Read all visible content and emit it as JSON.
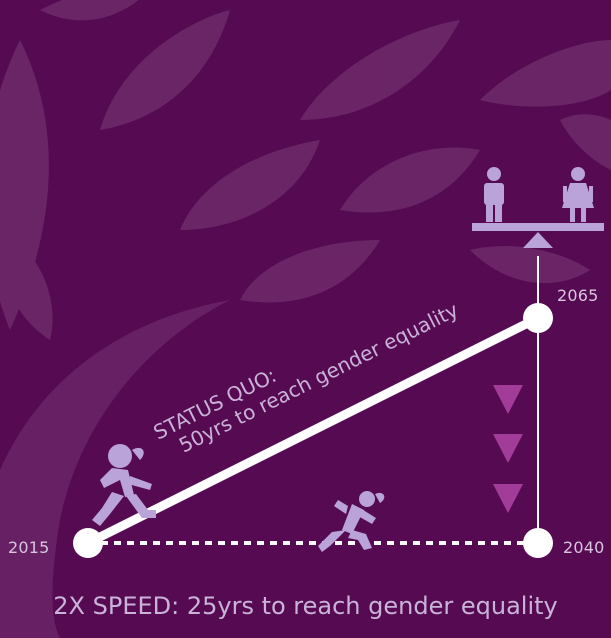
{
  "labels": {
    "year_start": "2015",
    "year_end_fast": "2040",
    "year_end_status_quo": "2065",
    "status_quo_title": "STATUS QUO:",
    "status_quo_subtitle": "50yrs to reach gender equality",
    "double_speed": "2X SPEED: 25yrs to reach gender equality"
  },
  "icons": {
    "walker": "walking-girl-icon",
    "runner": "running-woman-icon",
    "balance": "balance-scale-icon",
    "male": "male-figure-icon",
    "female": "female-figure-icon",
    "arrows": "down-arrow-icon"
  },
  "colors": {
    "background": "#560a52",
    "leaf": "#6e2a6b",
    "line": "#ffffff",
    "icon": "#b9a3d9",
    "arrow": "#a13c98",
    "text": "#d9c6de"
  }
}
